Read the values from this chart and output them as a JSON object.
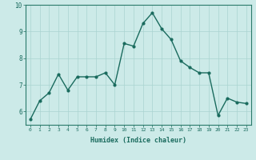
{
  "x": [
    0,
    1,
    2,
    3,
    4,
    5,
    6,
    7,
    8,
    9,
    10,
    11,
    12,
    13,
    14,
    15,
    16,
    17,
    18,
    19,
    20,
    21,
    22,
    23
  ],
  "y": [
    5.7,
    6.4,
    6.7,
    7.4,
    6.8,
    7.3,
    7.3,
    7.3,
    7.45,
    7.0,
    8.55,
    8.45,
    9.3,
    9.7,
    9.1,
    8.7,
    7.9,
    7.65,
    7.45,
    7.45,
    5.85,
    6.5,
    6.35,
    6.3
  ],
  "line_color": "#1a6b5e",
  "marker": "o",
  "markersize": 2,
  "linewidth": 1.0,
  "xlabel": "Humidex (Indice chaleur)",
  "xlabel_fontsize": 6,
  "xlim": [
    -0.5,
    23.5
  ],
  "ylim": [
    5.5,
    10.0
  ],
  "yticks": [
    6,
    7,
    8,
    9,
    10
  ],
  "xticks": [
    0,
    1,
    2,
    3,
    4,
    5,
    6,
    7,
    8,
    9,
    10,
    11,
    12,
    13,
    14,
    15,
    16,
    17,
    18,
    19,
    20,
    21,
    22,
    23
  ],
  "bg_color": "#cceae8",
  "grid_color": "#aad4d0",
  "tick_color": "#1a6b5e",
  "label_color": "#1a6b5e",
  "spine_color": "#2a7a6a"
}
